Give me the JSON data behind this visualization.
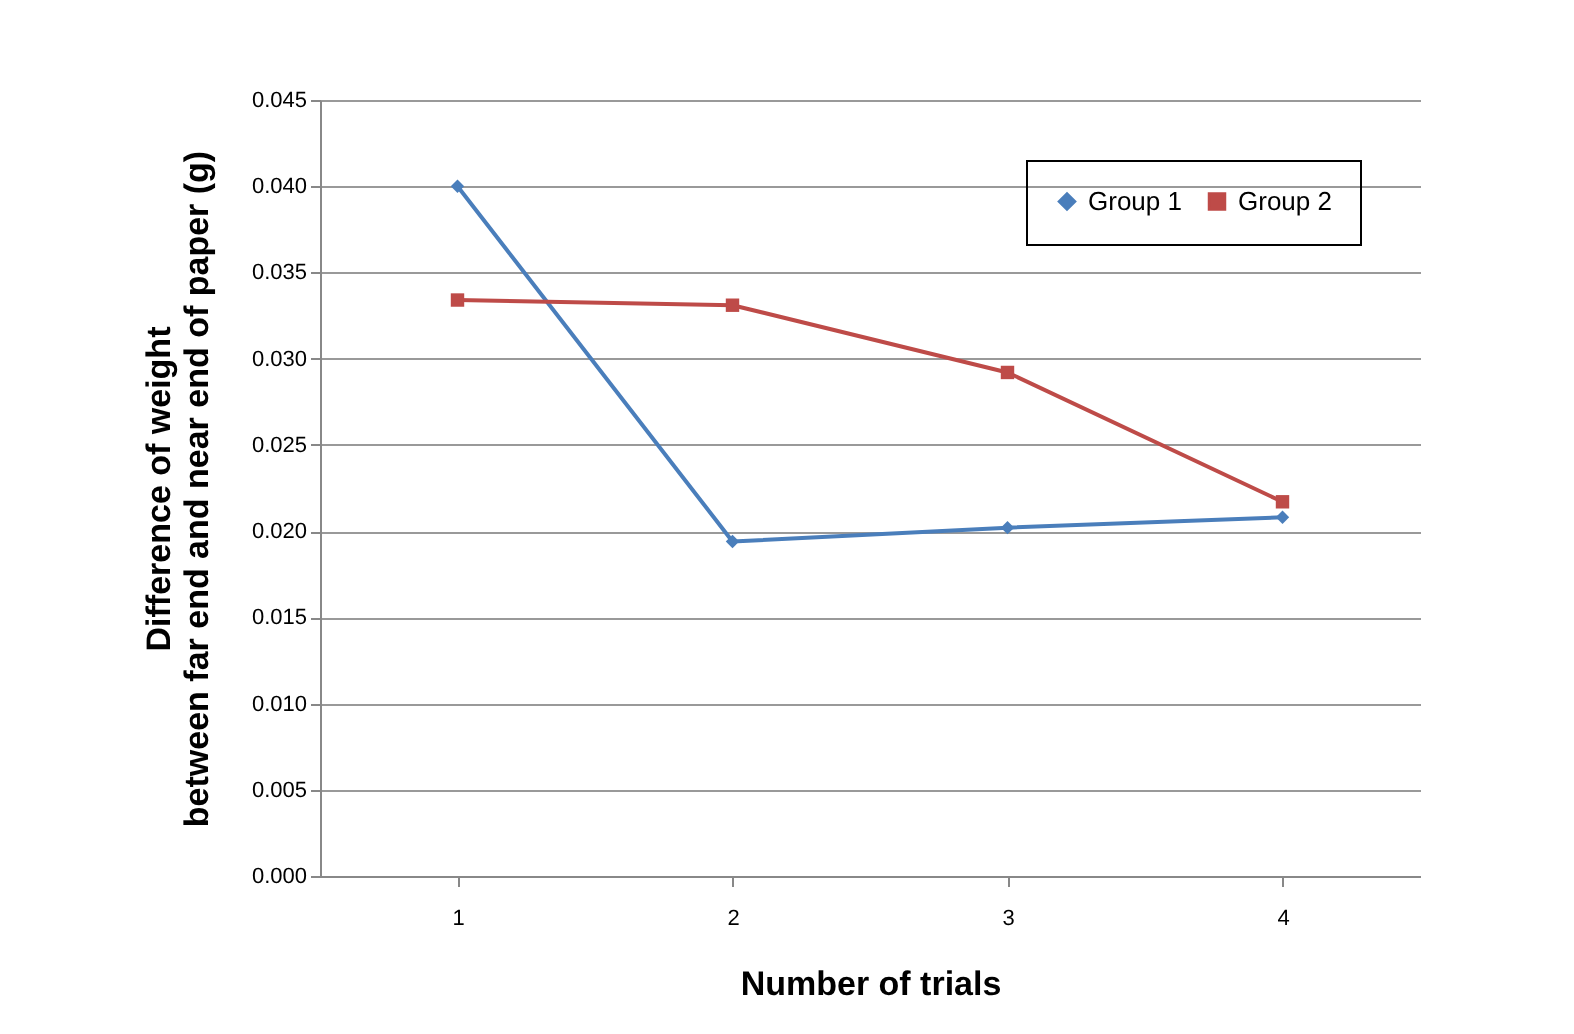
{
  "chart_data": {
    "type": "line",
    "xlabel": "Number of trials",
    "ylabel": "Difference of weight\nbetween far end and near end of paper (g)",
    "categories": [
      "1",
      "2",
      "3",
      "4"
    ],
    "series": [
      {
        "name": "Group 1",
        "color": "#4a7ebb",
        "marker": "diamond",
        "values": [
          0.04,
          0.0194,
          0.0202,
          0.0208
        ]
      },
      {
        "name": "Group 2",
        "color": "#be4b48",
        "marker": "square",
        "values": [
          0.0334,
          0.0331,
          0.0292,
          0.0217
        ]
      }
    ],
    "ylim": [
      0,
      0.045
    ],
    "yticks": [
      {
        "value": 0,
        "label": "0.000"
      },
      {
        "value": 0.005,
        "label": "0.005"
      },
      {
        "value": 0.01,
        "label": "0.010"
      },
      {
        "value": 0.015,
        "label": "0.015"
      },
      {
        "value": 0.02,
        "label": "0.020"
      },
      {
        "value": 0.025,
        "label": "0.025"
      },
      {
        "value": 0.03,
        "label": "0.030"
      },
      {
        "value": 0.035,
        "label": "0.035"
      },
      {
        "value": 0.04,
        "label": "0.040"
      },
      {
        "value": 0.045,
        "label": "0.045"
      }
    ],
    "grid": "y",
    "legend": "top right",
    "line_style": "solid"
  }
}
